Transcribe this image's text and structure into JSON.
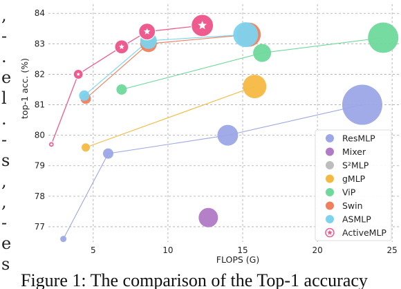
{
  "left_margin_fragments": [
    ",",
    "-",
    ".",
    "e",
    "l",
    ".",
    "-",
    "s",
    ",",
    ",",
    "-",
    "e",
    "s"
  ],
  "caption": "Figure 1: The comparison of the Top-1 accuracy",
  "chart_data": {
    "type": "scatter",
    "xlabel": "FLOPS (G)",
    "ylabel": "top-1 acc. (%)",
    "xlim": [
      2,
      25.5
    ],
    "ylim": [
      76.5,
      84.3
    ],
    "xticks": [
      5,
      10,
      15,
      20,
      25
    ],
    "yticks": [
      77,
      78,
      79,
      80,
      81,
      82,
      83,
      84
    ],
    "grid": true,
    "legend_position": "lower-right",
    "series": [
      {
        "name": "ResMLP",
        "color": "#9ba7e6",
        "points": [
          {
            "x": 3.0,
            "y": 76.6,
            "size": 9
          },
          {
            "x": 6.0,
            "y": 79.4,
            "size": 15
          },
          {
            "x": 14.0,
            "y": 80.0,
            "size": 30
          },
          {
            "x": 23.0,
            "y": 81.0,
            "size": 58
          }
        ]
      },
      {
        "name": "Mixer",
        "color": "#b07ac6",
        "points": [
          {
            "x": 12.7,
            "y": 77.3,
            "size": 28
          }
        ]
      },
      {
        "name": "S²MLP",
        "color": "#bdbdbd",
        "points": []
      },
      {
        "name": "gMLP",
        "color": "#f5b942",
        "points": [
          {
            "x": 4.5,
            "y": 79.6,
            "size": 12
          },
          {
            "x": 15.8,
            "y": 81.6,
            "size": 34
          }
        ]
      },
      {
        "name": "ViP",
        "color": "#6fd99b",
        "points": [
          {
            "x": 6.9,
            "y": 81.5,
            "size": 15
          },
          {
            "x": 16.3,
            "y": 82.7,
            "size": 26
          },
          {
            "x": 24.4,
            "y": 83.2,
            "size": 44
          }
        ]
      },
      {
        "name": "Swin",
        "color": "#f07f5c",
        "points": [
          {
            "x": 4.5,
            "y": 81.2,
            "size": 15
          },
          {
            "x": 8.7,
            "y": 83.0,
            "size": 24
          },
          {
            "x": 15.4,
            "y": 83.3,
            "size": 35
          }
        ]
      },
      {
        "name": "ASMLP",
        "color": "#7bd3ee",
        "points": [
          {
            "x": 4.4,
            "y": 81.3,
            "size": 15
          },
          {
            "x": 8.7,
            "y": 83.1,
            "size": 24
          },
          {
            "x": 15.2,
            "y": 83.3,
            "size": 36
          }
        ]
      },
      {
        "name": "ActiveMLP",
        "color": "#ee5b8e",
        "points": [
          {
            "x": 2.2,
            "y": 79.7,
            "size": 8
          },
          {
            "x": 4.0,
            "y": 82.0,
            "size": 14
          },
          {
            "x": 6.9,
            "y": 82.9,
            "size": 20
          },
          {
            "x": 8.6,
            "y": 83.4,
            "size": 24
          },
          {
            "x": 12.3,
            "y": 83.6,
            "size": 32
          }
        ]
      }
    ]
  }
}
